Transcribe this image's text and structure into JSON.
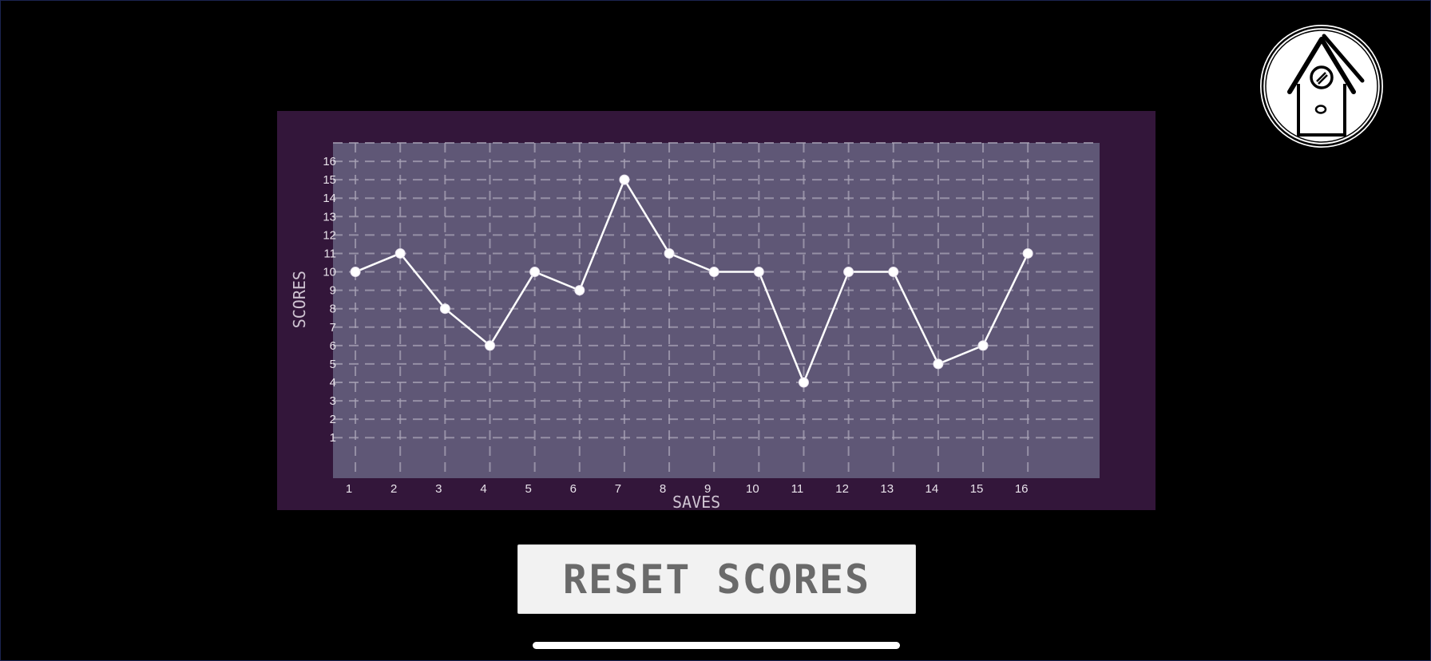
{
  "chart_data": {
    "type": "line",
    "title": "",
    "xlabel": "SAVES",
    "ylabel": "SCORES",
    "x": [
      1,
      2,
      3,
      4,
      5,
      6,
      7,
      8,
      9,
      10,
      11,
      12,
      13,
      14,
      15,
      16
    ],
    "series": [
      {
        "values": [
          10,
          11,
          8,
          6,
          10,
          9,
          15,
          11,
          10,
          10,
          4,
          10,
          10,
          5,
          6,
          11
        ]
      }
    ],
    "xticks": [
      "1",
      "2",
      "3",
      "4",
      "5",
      "6",
      "7",
      "8",
      "9",
      "10",
      "11",
      "12",
      "13",
      "14",
      "15",
      "16"
    ],
    "yticks": [
      "1",
      "2",
      "3",
      "4",
      "5",
      "6",
      "7",
      "8",
      "9",
      "10",
      "11",
      "12",
      "13",
      "14",
      "15",
      "16"
    ],
    "xlim": [
      0.5,
      17.6
    ],
    "ylim": [
      -1.2,
      17
    ],
    "grid": true,
    "colors": {
      "panel": "#33163a",
      "plot_area": "#5f5776",
      "grid": "#a9a3b6",
      "line": "#ffffff",
      "marker": "#ffffff"
    }
  },
  "buttons": {
    "reset_label": "RESET SCORES"
  },
  "icons": {
    "home": "birdhouse-home-icon"
  }
}
